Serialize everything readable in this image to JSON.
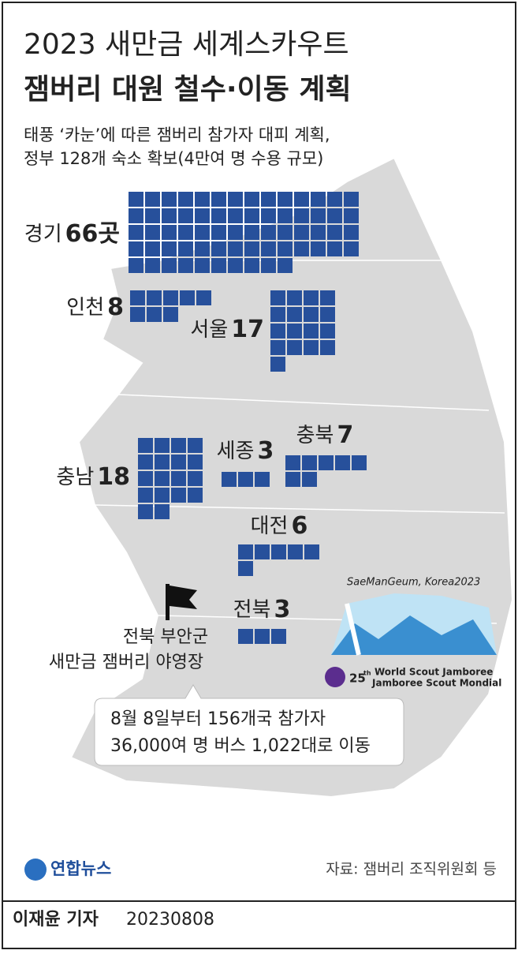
{
  "chart_data": {
    "type": "pictogram",
    "title": [
      "2023 새만금 세계스카우트",
      "잼버리 대원 철수·이동 계획"
    ],
    "subtitle": [
      "태풍 ‘카눈’에 따른 잼버리 참가자 대피 계획,",
      "정부 128개 숙소 확보(4만여 명 수용 규모)"
    ],
    "categories": [
      "경기",
      "인천",
      "서울",
      "충남",
      "세종",
      "충북",
      "대전",
      "전북"
    ],
    "values": [
      66,
      8,
      17,
      18,
      3,
      7,
      6,
      3
    ],
    "value_labels": [
      "66곳",
      "8",
      "17",
      "18",
      "3",
      "7",
      "6",
      "3"
    ],
    "color": "#27509b",
    "annotations": {
      "site": [
        "전북 부안군",
        "새만금 잼버리 야영장"
      ],
      "callout": [
        "8월 8일부터 156개국 참가자",
        "36,000여 명 버스 1,022대로 이동"
      ]
    },
    "logo": {
      "slogan": "SaeManGeum, Korea2023",
      "edition": "25",
      "suffix": "th",
      "line1": "World Scout Jamboree",
      "line2": "Jamboree Scout Mondial"
    },
    "source": "자료: 잼버리 조직위원회 등",
    "agency": "연합뉴스",
    "byline": "이재윤 기자",
    "date": "20230808"
  }
}
